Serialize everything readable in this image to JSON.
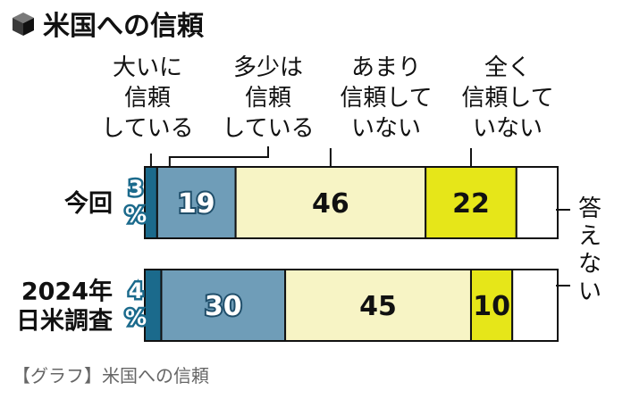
{
  "chart_data": {
    "type": "bar",
    "stacked": true,
    "orientation": "horizontal",
    "title": "米国への信頼",
    "title_icon": "cube-icon",
    "caption": "【グラフ】米国への信頼",
    "categories": [
      "今回",
      "2024年 日米調査"
    ],
    "series": [
      {
        "name": "大いに信頼している",
        "values": [
          3,
          4
        ],
        "color": "#1b6a8c"
      },
      {
        "name": "多少は信頼している",
        "values": [
          19,
          30
        ],
        "color": "#6f9db8"
      },
      {
        "name": "あまり信頼していない",
        "values": [
          46,
          45
        ],
        "color": "#f7f4c5"
      },
      {
        "name": "全く信頼していない",
        "values": [
          22,
          10
        ],
        "color": "#e6e619"
      },
      {
        "name": "答えない",
        "values": [
          10,
          11
        ],
        "color": "#ffffff"
      }
    ],
    "data_labels": [
      [
        "3%",
        "19",
        "46",
        "22",
        ""
      ],
      [
        "4%",
        "30",
        "45",
        "10",
        ""
      ]
    ],
    "legend_labels": [
      [
        "大いに",
        "信頼",
        "している"
      ],
      [
        "多少は",
        "信頼",
        "している"
      ],
      [
        "あまり",
        "信頼して",
        "いない"
      ],
      [
        "全く",
        "信頼して",
        "いない"
      ]
    ],
    "no_answer_label": "答えない",
    "xlim": [
      0,
      100
    ],
    "grid": false
  }
}
